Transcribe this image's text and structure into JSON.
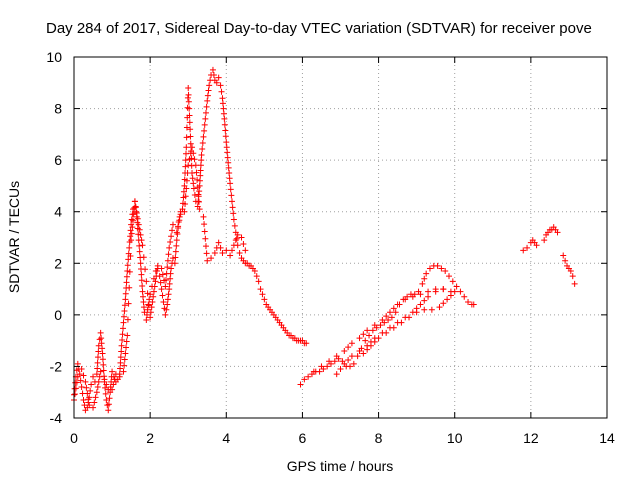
{
  "chart_data": {
    "type": "scatter",
    "title": "Day 284 of 2017, Sidereal Day-to-day VTEC variation (SDTVAR) for receiver pove",
    "xlabel": "GPS time / hours",
    "ylabel": "SDTVAR / TECUs",
    "xlim": [
      0,
      14
    ],
    "ylim": [
      -4,
      10
    ],
    "xticks": [
      "0",
      "2",
      "4",
      "6",
      "8",
      "10",
      "12",
      "14"
    ],
    "yticks": [
      "-4",
      "-2",
      "0",
      "2",
      "4",
      "6",
      "8",
      "10"
    ],
    "grid": true,
    "marker": "+",
    "color": "#ff0000",
    "series": [
      {
        "name": "SDTVAR",
        "segments": [
          [
            [
              0.0,
              -3.1
            ],
            [
              0.05,
              -2.4
            ],
            [
              0.1,
              -1.9
            ],
            [
              0.15,
              -2.3
            ],
            [
              0.2,
              -2.8
            ],
            [
              0.25,
              -3.3
            ],
            [
              0.3,
              -3.7
            ],
            [
              0.35,
              -3.6
            ],
            [
              0.4,
              -3.2
            ],
            [
              0.45,
              -2.7
            ],
            [
              0.5,
              -2.4
            ],
            [
              0.55,
              -2.6
            ],
            [
              0.6,
              -2.3
            ],
            [
              0.65,
              -1.2
            ],
            [
              0.7,
              -0.7
            ],
            [
              0.75,
              -1.5
            ],
            [
              0.8,
              -2.6
            ],
            [
              0.85,
              -3.3
            ],
            [
              0.9,
              -3.7
            ],
            [
              0.95,
              -3.0
            ],
            [
              1.0,
              -2.2
            ],
            [
              1.05,
              -2.4
            ],
            [
              1.1,
              -2.6
            ],
            [
              1.15,
              -2.5
            ],
            [
              1.2,
              -2.3
            ],
            [
              1.25,
              -1.2
            ],
            [
              1.3,
              -0.3
            ],
            [
              1.35,
              0.6
            ],
            [
              1.4,
              1.7
            ],
            [
              1.45,
              2.6
            ],
            [
              1.5,
              3.5
            ],
            [
              1.55,
              4.1
            ],
            [
              1.6,
              4.4
            ],
            [
              1.65,
              3.8
            ],
            [
              1.7,
              2.9
            ],
            [
              1.75,
              2.0
            ],
            [
              1.8,
              0.9
            ],
            [
              1.85,
              0.1
            ],
            [
              1.9,
              -0.2
            ],
            [
              1.95,
              0.4
            ],
            [
              2.0,
              0.8
            ],
            [
              2.05,
              1.1
            ],
            [
              2.1,
              1.4
            ],
            [
              2.15,
              1.7
            ],
            [
              2.2,
              1.8
            ],
            [
              2.25,
              1.5
            ],
            [
              2.3,
              1.0
            ],
            [
              2.35,
              0.5
            ],
            [
              2.4,
              0.0
            ],
            [
              2.45,
              0.4
            ],
            [
              2.5,
              1.0
            ],
            [
              2.55,
              1.8
            ],
            [
              2.6,
              2.2
            ],
            [
              2.65,
              2.0
            ],
            [
              2.7,
              2.9
            ],
            [
              2.75,
              3.6
            ],
            [
              2.8,
              4.0
            ],
            [
              2.85,
              4.1
            ],
            [
              2.9,
              5.0
            ],
            [
              2.95,
              6.5
            ],
            [
              3.0,
              8.8
            ],
            [
              3.05,
              7.2
            ],
            [
              3.1,
              5.5
            ],
            [
              3.15,
              4.9
            ],
            [
              3.2,
              4.4
            ],
            [
              3.25,
              4.2
            ],
            [
              3.3,
              5.0
            ],
            [
              3.35,
              6.2
            ],
            [
              3.4,
              6.9
            ],
            [
              3.45,
              7.6
            ],
            [
              3.5,
              8.3
            ],
            [
              3.55,
              8.9
            ],
            [
              3.6,
              9.3
            ],
            [
              3.65,
              9.5
            ],
            [
              3.7,
              9.1
            ],
            [
              3.75,
              9.0
            ],
            [
              3.8,
              9.2
            ],
            [
              3.85,
              8.9
            ],
            [
              3.9,
              8.4
            ],
            [
              3.95,
              7.6
            ],
            [
              4.0,
              6.7
            ],
            [
              4.05,
              5.9
            ],
            [
              4.1,
              5.1
            ],
            [
              4.15,
              4.4
            ],
            [
              4.2,
              3.7
            ],
            [
              4.25,
              3.2
            ],
            [
              4.3,
              2.7
            ],
            [
              4.35,
              2.4
            ],
            [
              4.4,
              2.2
            ],
            [
              4.45,
              2.1
            ],
            [
              4.5,
              2.0
            ],
            [
              4.55,
              2.0
            ],
            [
              4.6,
              1.9
            ],
            [
              4.65,
              1.9
            ],
            [
              4.7,
              1.8
            ],
            [
              4.75,
              1.7
            ],
            [
              4.8,
              1.5
            ],
            [
              4.85,
              1.3
            ],
            [
              4.9,
              1.0
            ],
            [
              4.95,
              0.8
            ],
            [
              5.0,
              0.6
            ],
            [
              5.05,
              0.4
            ],
            [
              5.1,
              0.3
            ],
            [
              5.15,
              0.2
            ],
            [
              5.2,
              0.1
            ],
            [
              5.25,
              0.0
            ],
            [
              5.3,
              -0.1
            ],
            [
              5.35,
              -0.2
            ],
            [
              5.4,
              -0.3
            ],
            [
              5.45,
              -0.4
            ],
            [
              5.5,
              -0.5
            ],
            [
              5.55,
              -0.6
            ],
            [
              5.6,
              -0.7
            ],
            [
              5.65,
              -0.8
            ],
            [
              5.7,
              -0.8
            ],
            [
              5.75,
              -0.9
            ],
            [
              5.8,
              -0.9
            ],
            [
              5.85,
              -1.0
            ],
            [
              5.9,
              -1.0
            ],
            [
              5.95,
              -1.0
            ],
            [
              6.0,
              -1.0
            ],
            [
              6.05,
              -1.1
            ],
            [
              6.1,
              -1.1
            ]
          ],
          [
            [
              0.0,
              -3.3
            ],
            [
              0.1,
              -2.4
            ],
            [
              0.2,
              -2.1
            ],
            [
              0.3,
              -2.6
            ],
            [
              0.4,
              -3.5
            ],
            [
              0.5,
              -3.6
            ],
            [
              0.6,
              -3.0
            ],
            [
              0.7,
              -2.2
            ],
            [
              0.8,
              -2.5
            ],
            [
              0.9,
              -2.9
            ],
            [
              1.0,
              -2.9
            ],
            [
              1.1,
              -2.3
            ],
            [
              1.2,
              -2.4
            ],
            [
              1.3,
              -2.2
            ],
            [
              1.4,
              -0.8
            ],
            [
              1.5,
              2.9
            ],
            [
              1.6,
              4.4
            ],
            [
              1.7,
              3.5
            ],
            [
              1.8,
              2.7
            ],
            [
              2.0,
              -0.1
            ],
            [
              2.1,
              0.9
            ],
            [
              2.2,
              1.9
            ],
            [
              2.3,
              1.8
            ],
            [
              2.4,
              1.1
            ],
            [
              2.5,
              2.6
            ],
            [
              2.6,
              3.5
            ],
            [
              2.7,
              3.2
            ],
            [
              2.8,
              3.9
            ],
            [
              2.9,
              4.0
            ],
            [
              3.0,
              5.8
            ],
            [
              3.1,
              6.5
            ],
            [
              3.2,
              5.8
            ],
            [
              3.3,
              4.1
            ],
            [
              3.4,
              3.8
            ],
            [
              3.5,
              2.1
            ],
            [
              3.6,
              2.2
            ],
            [
              3.7,
              2.4
            ],
            [
              3.8,
              2.8
            ],
            [
              3.9,
              2.4
            ],
            [
              4.0,
              2.5
            ],
            [
              4.1,
              2.3
            ],
            [
              4.2,
              2.7
            ],
            [
              4.3,
              3.1
            ],
            [
              4.4,
              3.0
            ],
            [
              4.5,
              2.5
            ]
          ],
          [
            [
              5.95,
              -2.7
            ],
            [
              6.05,
              -2.5
            ],
            [
              6.15,
              -2.4
            ],
            [
              6.25,
              -2.3
            ],
            [
              6.35,
              -2.2
            ],
            [
              6.45,
              -2.2
            ],
            [
              6.55,
              -2.1
            ],
            [
              6.65,
              -2.0
            ],
            [
              6.75,
              -1.9
            ],
            [
              6.85,
              -1.8
            ],
            [
              6.95,
              -1.7
            ],
            [
              7.05,
              -1.8
            ],
            [
              7.15,
              -2.0
            ],
            [
              7.25,
              -2.0
            ],
            [
              7.35,
              -1.9
            ],
            [
              7.45,
              -1.6
            ],
            [
              7.55,
              -1.3
            ],
            [
              7.65,
              -1.0
            ],
            [
              7.75,
              -0.8
            ],
            [
              7.85,
              -0.6
            ],
            [
              7.95,
              -0.5
            ],
            [
              8.05,
              -0.4
            ],
            [
              8.15,
              -0.3
            ],
            [
              8.25,
              -0.2
            ],
            [
              8.35,
              -0.1
            ],
            [
              8.45,
              0.1
            ],
            [
              8.55,
              0.4
            ],
            [
              8.65,
              0.6
            ],
            [
              8.75,
              0.7
            ],
            [
              8.85,
              0.8
            ],
            [
              8.95,
              0.8
            ],
            [
              9.05,
              0.9
            ],
            [
              9.15,
              1.2
            ],
            [
              9.25,
              1.6
            ],
            [
              9.35,
              1.8
            ],
            [
              9.45,
              1.9
            ],
            [
              9.55,
              1.9
            ],
            [
              9.65,
              1.8
            ],
            [
              9.75,
              1.7
            ],
            [
              9.85,
              1.5
            ],
            [
              9.95,
              1.3
            ],
            [
              10.05,
              1.1
            ],
            [
              10.15,
              0.9
            ],
            [
              10.25,
              0.7
            ],
            [
              10.35,
              0.5
            ],
            [
              10.45,
              0.4
            ],
            [
              10.5,
              0.4
            ]
          ],
          [
            [
              6.3,
              -2.2
            ],
            [
              6.5,
              -2.0
            ],
            [
              6.7,
              -1.8
            ],
            [
              6.9,
              -1.6
            ],
            [
              7.1,
              -1.4
            ],
            [
              7.3,
              -1.1
            ],
            [
              7.5,
              -0.9
            ],
            [
              7.7,
              -0.6
            ],
            [
              7.9,
              -0.4
            ],
            [
              8.1,
              -0.2
            ],
            [
              8.3,
              0.1
            ],
            [
              8.5,
              0.4
            ],
            [
              8.7,
              0.6
            ],
            [
              8.9,
              0.7
            ],
            [
              9.1,
              0.8
            ],
            [
              9.3,
              0.9
            ],
            [
              9.5,
              1.0
            ],
            [
              9.7,
              1.0
            ],
            [
              9.9,
              0.9
            ]
          ],
          [
            [
              6.9,
              -2.3
            ],
            [
              7.1,
              -1.9
            ],
            [
              7.3,
              -1.6
            ],
            [
              7.5,
              -1.4
            ],
            [
              7.7,
              -1.2
            ],
            [
              7.9,
              -0.9
            ],
            [
              8.1,
              -0.7
            ],
            [
              8.3,
              -0.5
            ],
            [
              8.5,
              -0.3
            ],
            [
              8.7,
              -0.1
            ],
            [
              8.9,
              0.1
            ],
            [
              9.1,
              0.4
            ],
            [
              9.3,
              0.7
            ],
            [
              9.5,
              0.9
            ],
            [
              9.7,
              1.0
            ]
          ],
          [
            [
              7.6,
              -1.5
            ],
            [
              7.8,
              -1.2
            ],
            [
              8.0,
              -0.9
            ],
            [
              8.2,
              -0.7
            ],
            [
              8.4,
              -0.5
            ],
            [
              8.6,
              -0.3
            ],
            [
              8.8,
              -0.1
            ],
            [
              9.0,
              0.1
            ],
            [
              9.2,
              0.2
            ],
            [
              9.4,
              0.2
            ],
            [
              9.6,
              0.3
            ],
            [
              9.8,
              0.6
            ],
            [
              10.0,
              0.9
            ]
          ],
          [
            [
              11.8,
              2.5
            ],
            [
              11.9,
              2.6
            ],
            [
              12.0,
              2.8
            ],
            [
              12.05,
              2.9
            ],
            [
              12.1,
              2.8
            ],
            [
              12.15,
              2.7
            ]
          ],
          [
            [
              12.35,
              2.9
            ],
            [
              12.4,
              3.1
            ],
            [
              12.45,
              3.2
            ],
            [
              12.5,
              3.3
            ],
            [
              12.55,
              3.3
            ],
            [
              12.6,
              3.4
            ],
            [
              12.65,
              3.3
            ],
            [
              12.7,
              3.2
            ]
          ],
          [
            [
              12.85,
              2.3
            ],
            [
              12.9,
              2.1
            ],
            [
              12.95,
              1.9
            ],
            [
              13.0,
              1.8
            ],
            [
              13.05,
              1.7
            ],
            [
              13.1,
              1.5
            ],
            [
              13.15,
              1.2
            ]
          ]
        ]
      }
    ]
  }
}
